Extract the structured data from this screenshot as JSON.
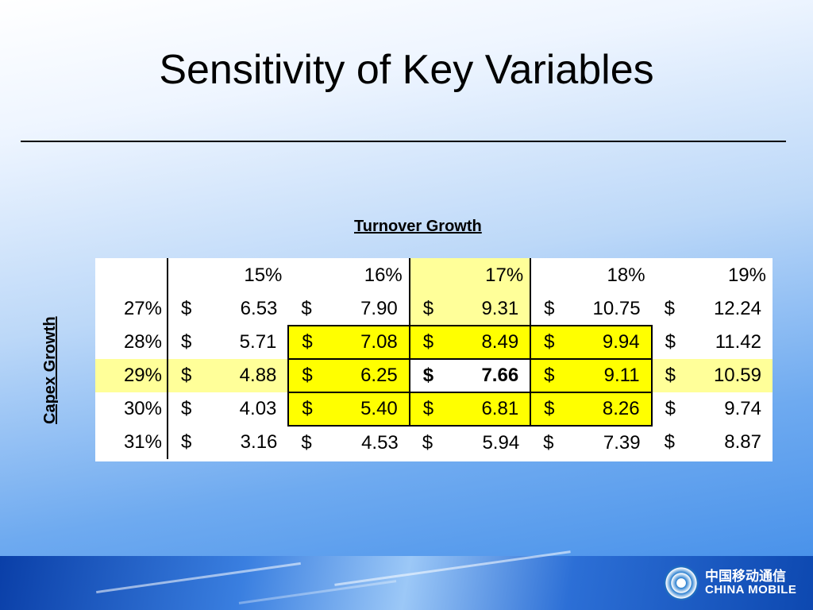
{
  "slide": {
    "title": "Sensitivity of Key Variables",
    "column_axis_label": "Turnover Growth",
    "row_axis_label": "Capex Growth"
  },
  "table": {
    "columns": [
      "15%",
      "16%",
      "17%",
      "18%",
      "19%"
    ],
    "rows": [
      {
        "label": "27%",
        "values": [
          "6.53",
          "7.90",
          "9.31",
          "10.75",
          "12.24"
        ]
      },
      {
        "label": "28%",
        "values": [
          "5.71",
          "7.08",
          "8.49",
          "9.94",
          "11.42"
        ]
      },
      {
        "label": "29%",
        "values": [
          "4.88",
          "6.25",
          "7.66",
          "9.11",
          "10.59"
        ]
      },
      {
        "label": "30%",
        "values": [
          "4.03",
          "5.40",
          "6.81",
          "8.26",
          "9.74"
        ]
      },
      {
        "label": "31%",
        "values": [
          "3.16",
          "4.53",
          "5.94",
          "7.39",
          "8.87"
        ]
      }
    ],
    "currency_symbol": "$",
    "highlight_colors": {
      "base_row_col": "#ffff99",
      "range_box": "#ffff00"
    }
  },
  "footer": {
    "logo_cn": "中国移动通信",
    "logo_en": "CHINA MOBILE"
  }
}
